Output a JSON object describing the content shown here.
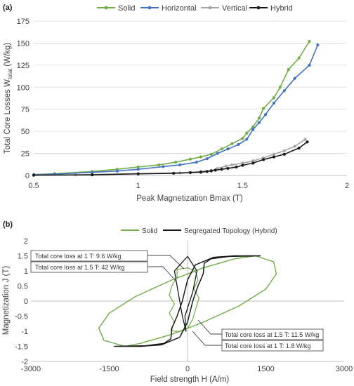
{
  "chart_data": [
    {
      "panel": "(a)",
      "type": "line",
      "xlabel": "Peak Magnetization Bmax (T)",
      "ylabel": "Total Core Losses W",
      "ylabel_sub": "total",
      "ylabel_unit": " (W/kg)",
      "xlim": [
        0.5,
        2
      ],
      "ylim": [
        0,
        175
      ],
      "xticks": [
        0.5,
        1,
        1.5,
        2
      ],
      "xtick_labels": [
        "0.5",
        "1",
        "1.5",
        "2"
      ],
      "yticks": [
        0,
        25,
        50,
        75,
        100,
        125,
        150,
        175
      ],
      "ytick_labels": [
        "0",
        "25",
        "50",
        "75",
        "100",
        "125",
        "150",
        "175"
      ],
      "grid": "horizontal",
      "legend_position": "top",
      "series": [
        {
          "name": "Solid",
          "color": "#70ad47",
          "points": [
            [
              0.5,
              1.0
            ],
            [
              0.6,
              2.0
            ],
            [
              0.78,
              4.5
            ],
            [
              0.9,
              7
            ],
            [
              1.0,
              9.6
            ],
            [
              1.1,
              12
            ],
            [
              1.18,
              15
            ],
            [
              1.25,
              18.5
            ],
            [
              1.3,
              21
            ],
            [
              1.35,
              24
            ],
            [
              1.4,
              30
            ],
            [
              1.45,
              36
            ],
            [
              1.5,
              42
            ],
            [
              1.52,
              48
            ],
            [
              1.55,
              55
            ],
            [
              1.58,
              65
            ],
            [
              1.6,
              76
            ],
            [
              1.65,
              88
            ],
            [
              1.68,
              100
            ],
            [
              1.72,
              120
            ],
            [
              1.77,
              133
            ],
            [
              1.82,
              152
            ]
          ]
        },
        {
          "name": "Horizontal",
          "color": "#4472c4",
          "points": [
            [
              0.5,
              0.8
            ],
            [
              0.6,
              1.5
            ],
            [
              0.78,
              3.5
            ],
            [
              0.9,
              5
            ],
            [
              1.0,
              7
            ],
            [
              1.12,
              10
            ],
            [
              1.2,
              12
            ],
            [
              1.28,
              15
            ],
            [
              1.33,
              19
            ],
            [
              1.38,
              25
            ],
            [
              1.43,
              30
            ],
            [
              1.48,
              35
            ],
            [
              1.52,
              41
            ],
            [
              1.55,
              52
            ],
            [
              1.58,
              60
            ],
            [
              1.61,
              69
            ],
            [
              1.65,
              82
            ],
            [
              1.7,
              96
            ],
            [
              1.75,
              110
            ],
            [
              1.82,
              125
            ],
            [
              1.86,
              148
            ]
          ]
        },
        {
          "name": "Vertical",
          "color": "#a5a5a5",
          "points": [
            [
              0.5,
              0.5
            ],
            [
              0.7,
              0.6
            ],
            [
              0.78,
              1.0
            ],
            [
              1.0,
              2.0
            ],
            [
              1.2,
              3.0
            ],
            [
              1.3,
              4.5
            ],
            [
              1.35,
              5.5
            ],
            [
              1.38,
              8
            ],
            [
              1.42,
              10.5
            ],
            [
              1.45,
              12
            ],
            [
              1.5,
              14
            ],
            [
              1.55,
              16.5
            ],
            [
              1.6,
              20
            ],
            [
              1.65,
              24
            ],
            [
              1.7,
              28
            ],
            [
              1.75,
              33
            ],
            [
              1.8,
              41
            ]
          ]
        },
        {
          "name": "Hybrid",
          "color": "#1a1a1a",
          "points": [
            [
              0.5,
              0.3
            ],
            [
              0.78,
              0.7
            ],
            [
              1.0,
              1.8
            ],
            [
              1.17,
              2.5
            ],
            [
              1.25,
              3.2
            ],
            [
              1.3,
              3.7
            ],
            [
              1.33,
              4.5
            ],
            [
              1.35,
              5.2
            ],
            [
              1.37,
              6.0
            ],
            [
              1.4,
              7.0
            ],
            [
              1.43,
              8.0
            ],
            [
              1.47,
              9.5
            ],
            [
              1.5,
              11.5
            ],
            [
              1.55,
              14.0
            ],
            [
              1.6,
              18
            ],
            [
              1.65,
              21
            ],
            [
              1.7,
              24
            ],
            [
              1.77,
              31
            ],
            [
              1.81,
              38
            ]
          ]
        }
      ]
    },
    {
      "panel": "(b)",
      "type": "line",
      "xlabel": "Field strength H (A/m)",
      "ylabel": "Magnetization J (T)",
      "xlim": [
        -3000,
        3000
      ],
      "ylim": [
        -2,
        2
      ],
      "xticks": [
        -3000,
        -1500,
        0,
        1500,
        3000
      ],
      "xtick_labels": [
        "-3000",
        "-1500",
        "0",
        "1500",
        "3000"
      ],
      "yticks": [
        -2,
        -1.5,
        -1,
        -0.5,
        0,
        0.5,
        1,
        1.5,
        2
      ],
      "ytick_labels": [
        "-2",
        "-1.5",
        "-1",
        "-0.5",
        "0",
        "0.5",
        "1",
        "1.5",
        "2"
      ],
      "grid": "none",
      "legend_position": "top",
      "series": [
        {
          "name": "Solid",
          "color": "#70ad47"
        },
        {
          "name": "Segregated Topology (Hybrid)",
          "color": "#1a1a1a"
        }
      ],
      "loops": {
        "solid_outer": [
          [
            1300,
            1.5
          ],
          [
            1650,
            1.3
          ],
          [
            1700,
            0.9
          ],
          [
            1500,
            0.4
          ],
          [
            1000,
            -0.15
          ],
          [
            300,
            -0.7
          ],
          [
            -300,
            -1.1
          ],
          [
            -900,
            -1.4
          ],
          [
            -1200,
            -1.5
          ],
          [
            -1600,
            -1.3
          ],
          [
            -1700,
            -0.9
          ],
          [
            -1500,
            -0.4
          ],
          [
            -1000,
            0.15
          ],
          [
            -300,
            0.7
          ],
          [
            300,
            1.1
          ],
          [
            900,
            1.4
          ],
          [
            1300,
            1.5
          ]
        ],
        "solid_inner": [
          [
            -200,
            1.05
          ],
          [
            0,
            1.1
          ],
          [
            150,
            1.0
          ],
          [
            200,
            0.7
          ],
          [
            120,
            0.4
          ],
          [
            220,
            0.1
          ],
          [
            150,
            -0.3
          ],
          [
            100,
            -0.6
          ],
          [
            0,
            -0.9
          ],
          [
            -100,
            -1.0
          ],
          [
            -250,
            -1.0
          ],
          [
            -320,
            -0.95
          ],
          [
            -250,
            -0.7
          ],
          [
            -350,
            -0.4
          ],
          [
            -250,
            -0.1
          ],
          [
            -350,
            0.2
          ],
          [
            -300,
            0.5
          ],
          [
            -200,
            0.8
          ],
          [
            -200,
            1.05
          ]
        ],
        "hybrid_outer": [
          [
            1400,
            1.5
          ],
          [
            800,
            1.48
          ],
          [
            450,
            1.4
          ],
          [
            320,
            1.25
          ],
          [
            300,
            0.9
          ],
          [
            200,
            0.5
          ],
          [
            100,
            0.0
          ],
          [
            0,
            -0.7
          ],
          [
            -150,
            -1.2
          ],
          [
            -500,
            -1.45
          ],
          [
            -900,
            -1.5
          ],
          [
            -1400,
            -1.5
          ],
          [
            -800,
            -1.48
          ],
          [
            -450,
            -1.4
          ],
          [
            -320,
            -1.25
          ],
          [
            -300,
            -0.9
          ],
          [
            -200,
            -0.5
          ],
          [
            -100,
            0.0
          ],
          [
            0,
            0.7
          ],
          [
            150,
            1.2
          ],
          [
            500,
            1.45
          ],
          [
            900,
            1.5
          ],
          [
            1400,
            1.5
          ]
        ],
        "hybrid_minor": [
          [
            0,
            1.48
          ],
          [
            -250,
            1.0
          ],
          [
            -200,
            0.5
          ],
          [
            -100,
            -0.5
          ],
          [
            -30,
            -1.0
          ],
          [
            -50,
            -0.5
          ],
          [
            100,
            0.3
          ],
          [
            180,
            1.0
          ],
          [
            0,
            1.48
          ]
        ]
      },
      "annotations": [
        {
          "text": "Total core loss at 1 T: 9.6 W/kg"
        },
        {
          "text": "Total core loss at 1.5 T: 42 W/kg"
        },
        {
          "text": "Total core loss at 1.5 T: 11.5 W/kg"
        },
        {
          "text": "Total core loss at 1 T: 1.8 W/kg"
        }
      ]
    }
  ]
}
